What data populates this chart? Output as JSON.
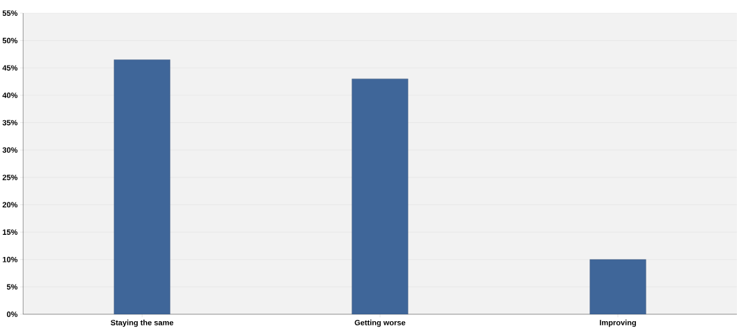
{
  "chart_data": {
    "type": "bar",
    "categories": [
      "Staying the same",
      "Getting worse",
      "Improving"
    ],
    "values": [
      46.5,
      43,
      10
    ],
    "color": "#3f6699",
    "ylim": [
      0,
      55
    ],
    "yticks": [
      {
        "value": 0,
        "label": "0%"
      },
      {
        "value": 5,
        "label": "5%"
      },
      {
        "value": 10,
        "label": "10%"
      },
      {
        "value": 15,
        "label": "15%"
      },
      {
        "value": 20,
        "label": "20%"
      },
      {
        "value": 25,
        "label": "25%"
      },
      {
        "value": 30,
        "label": "30%"
      },
      {
        "value": 35,
        "label": "35%"
      },
      {
        "value": 40,
        "label": "40%"
      },
      {
        "value": 45,
        "label": "45%"
      },
      {
        "value": 50,
        "label": "50%"
      },
      {
        "value": 55,
        "label": "55%"
      }
    ],
    "grid": "y"
  }
}
